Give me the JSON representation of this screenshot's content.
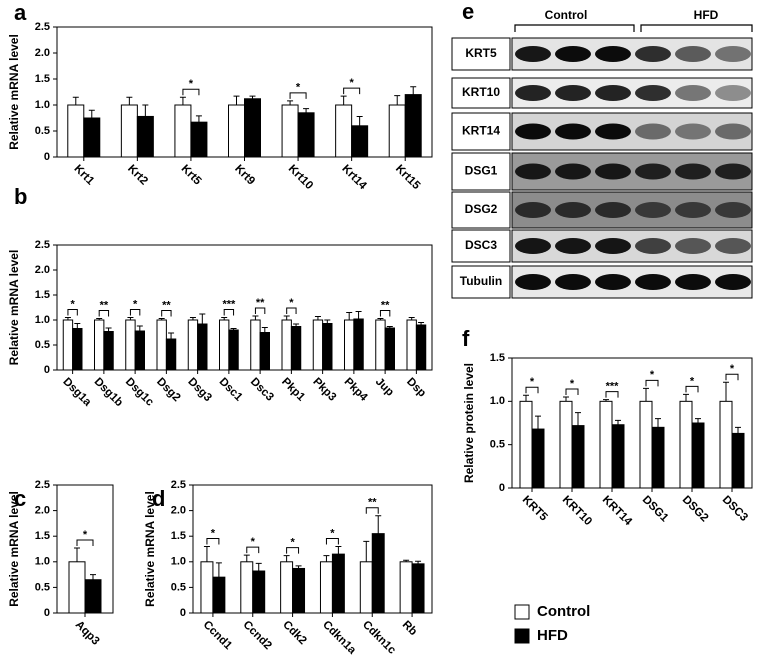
{
  "chart_data": [
    {
      "type": "bar",
      "panel": "a",
      "y_label": "Relative mRNA level",
      "categories": [
        "Krt1",
        "Krt2",
        "Krt5",
        "Krt9",
        "Krt10",
        "Krt14",
        "Krt15"
      ],
      "series": [
        {
          "color": "#ffffff",
          "values": [
            1,
            1,
            1,
            1,
            1,
            1,
            1
          ],
          "errors": [
            0.15,
            0.15,
            0.15,
            0.17,
            0.08,
            0.17,
            0.18
          ]
        },
        {
          "color": "#000000",
          "values": [
            0.75,
            0.78,
            0.67,
            1.12,
            0.85,
            0.6,
            1.2
          ],
          "errors": [
            0.15,
            0.22,
            0.12,
            0.05,
            0.08,
            0.18,
            0.15
          ]
        }
      ],
      "significance": [
        null,
        null,
        "*",
        null,
        "*",
        "*",
        null
      ],
      "ylim": [
        0,
        2.5
      ],
      "yticks": [
        0,
        0.5,
        {
          "value": 1,
          "label": "1.0"
        },
        1.5,
        {
          "value": 2,
          "label": "2.0"
        },
        2.5
      ]
    },
    {
      "type": "bar",
      "panel": "b",
      "y_label": "Relative mRNA level",
      "categories": [
        "Dsg1a",
        "Dsg1b",
        "Dsg1c",
        "Dsg2",
        "Dsg3",
        "Dsc1",
        "Dsc3",
        "Pkp1",
        "Pkp3",
        "Pkp4",
        "Jup",
        "Dsp"
      ],
      "series": [
        {
          "color": "#ffffff",
          "values": [
            1,
            1,
            1,
            1,
            1,
            1,
            1,
            1,
            1,
            1,
            1,
            1
          ],
          "errors": [
            0.05,
            0.03,
            0.05,
            0.03,
            0.05,
            0.05,
            0.08,
            0.08,
            0.07,
            0.15,
            0.03,
            0.05
          ]
        },
        {
          "color": "#000000",
          "values": [
            0.83,
            0.77,
            0.78,
            0.62,
            0.92,
            0.8,
            0.75,
            0.87,
            0.93,
            1.02,
            0.84,
            0.9
          ],
          "errors": [
            0.1,
            0.07,
            0.1,
            0.12,
            0.2,
            0.03,
            0.1,
            0.05,
            0.07,
            0.15,
            0.03,
            0.05
          ]
        }
      ],
      "significance": [
        "*",
        "**",
        "*",
        "**",
        null,
        "***",
        "**",
        "*",
        null,
        null,
        "**",
        null
      ],
      "ylim": [
        0,
        2.5
      ],
      "yticks": [
        0,
        0.5,
        {
          "value": 1,
          "label": "1.0"
        },
        1.5,
        {
          "value": 2,
          "label": "2.0"
        },
        2.5
      ]
    },
    {
      "type": "bar",
      "panel": "c",
      "y_label": "Relative mRNA level",
      "categories": [
        "Aqp3"
      ],
      "series": [
        {
          "color": "#ffffff",
          "values": [
            1
          ],
          "errors": [
            0.27
          ]
        },
        {
          "color": "#000000",
          "values": [
            0.65
          ],
          "errors": [
            0.1
          ]
        }
      ],
      "significance": [
        "*"
      ],
      "ylim": [
        0,
        2.5
      ],
      "yticks": [
        0,
        0.5,
        {
          "value": 1,
          "label": "1.0"
        },
        1.5,
        {
          "value": 2,
          "label": "2.0"
        },
        2.5
      ]
    },
    {
      "type": "bar",
      "panel": "d",
      "y_label": "Relative mRNA level",
      "categories": [
        "Ccnd1",
        "Ccnd2",
        "Cdk2",
        "Cdkn1a",
        "Cdkn1c",
        "Rb"
      ],
      "series": [
        {
          "color": "#ffffff",
          "values": [
            1,
            1,
            1,
            1,
            1,
            1
          ],
          "errors": [
            0.3,
            0.13,
            0.12,
            0.12,
            0.4,
            0.03
          ]
        },
        {
          "color": "#000000",
          "values": [
            0.7,
            0.82,
            0.87,
            1.15,
            1.55,
            0.96
          ],
          "errors": [
            0.28,
            0.15,
            0.05,
            0.15,
            0.35,
            0.05
          ]
        }
      ],
      "significance": [
        "*",
        "*",
        "*",
        "*",
        "**",
        null
      ],
      "ylim": [
        0,
        2.5
      ],
      "yticks": [
        0,
        0.5,
        {
          "value": 1,
          "label": "1.0"
        },
        1.5,
        {
          "value": 2,
          "label": "2.0"
        },
        2.5
      ]
    },
    {
      "type": "bar",
      "panel": "f",
      "y_label": "Relative protein level",
      "categories": [
        "KRT5",
        "KRT10",
        "KRT14",
        "DSG1",
        "DSG2",
        "DSC3"
      ],
      "series": [
        {
          "color": "#ffffff",
          "values": [
            1,
            1,
            1,
            1,
            1,
            1
          ],
          "errors": [
            0.07,
            0.05,
            0.02,
            0.15,
            0.08,
            0.22
          ]
        },
        {
          "color": "#000000",
          "values": [
            0.68,
            0.72,
            0.73,
            0.7,
            0.75,
            0.63
          ],
          "errors": [
            0.15,
            0.15,
            0.05,
            0.1,
            0.05,
            0.07
          ]
        }
      ],
      "significance": [
        "*",
        "*",
        "***",
        "*",
        "*",
        "*"
      ],
      "ylim": [
        0,
        1.5
      ],
      "yticks": [
        0,
        0.5,
        {
          "value": 1,
          "label": "1.0"
        },
        1.5
      ]
    }
  ],
  "legend": [
    {
      "name": "Control",
      "color": "#ffffff"
    },
    {
      "name": "HFD",
      "color": "#000000"
    }
  ],
  "blot": {
    "panel": "e",
    "groups": [
      "Control",
      "HFD"
    ],
    "rows": [
      "KRT5",
      "KRT10",
      "KRT14",
      "DSG1",
      "DSG2",
      "DSC3",
      "Tubulin"
    ]
  }
}
